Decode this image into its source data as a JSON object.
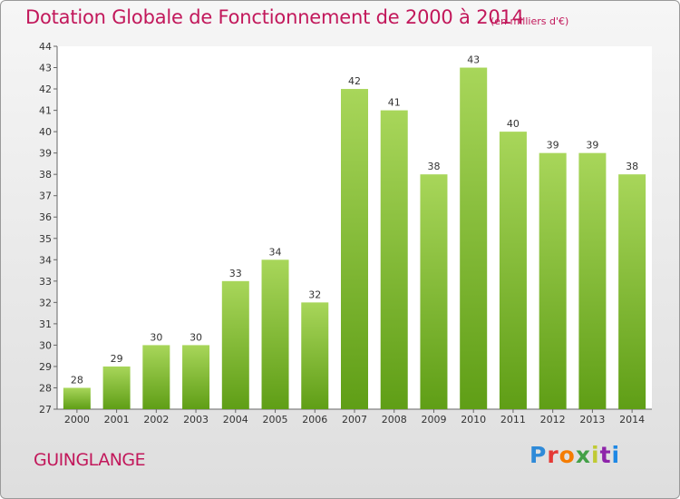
{
  "title": "Dotation Globale de Fonctionnement de 2000 à 2014",
  "unit_note": "(en milliers d'€)",
  "commune": "GUINGLANGE",
  "logo": {
    "letters": [
      "P",
      "r",
      "o",
      "x",
      "i",
      "t",
      "i"
    ],
    "colors": [
      "#2e8ad8",
      "#e53935",
      "#f57c00",
      "#43a047",
      "#c0ca33",
      "#8e24aa",
      "#1e88e5"
    ]
  },
  "colors": {
    "bar_top": "#a8d65a",
    "bar_bottom": "#5f9e16",
    "title": "#c2185b"
  },
  "chart_data": {
    "type": "bar",
    "title": "Dotation Globale de Fonctionnement de 2000 à 2014",
    "categories": [
      "2000",
      "2001",
      "2002",
      "2003",
      "2004",
      "2005",
      "2006",
      "2007",
      "2008",
      "2009",
      "2010",
      "2011",
      "2012",
      "2013",
      "2014"
    ],
    "values": [
      28,
      29,
      30,
      30,
      33,
      34,
      32,
      42,
      41,
      38,
      43,
      40,
      39,
      39,
      38
    ],
    "ylim": [
      27,
      44
    ],
    "yticks": [
      27,
      28,
      29,
      30,
      31,
      32,
      33,
      34,
      35,
      36,
      37,
      38,
      39,
      40,
      41,
      42,
      43,
      44
    ],
    "grid": false,
    "data_labels": true
  }
}
